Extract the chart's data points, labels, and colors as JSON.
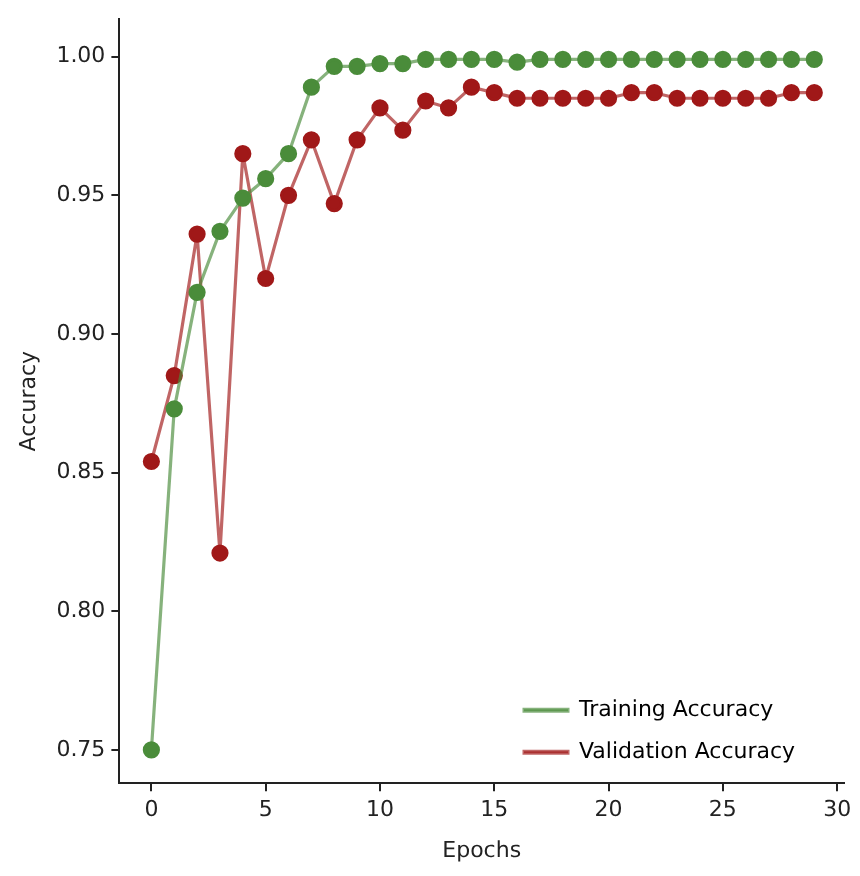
{
  "chart_data": {
    "type": "line",
    "xlabel": "Epochs",
    "ylabel": "Accuracy",
    "x": [
      0,
      1,
      2,
      3,
      4,
      5,
      6,
      7,
      8,
      9,
      10,
      11,
      12,
      13,
      14,
      15,
      16,
      17,
      18,
      19,
      20,
      21,
      22,
      23,
      24,
      25,
      26,
      27,
      28,
      29
    ],
    "series": [
      {
        "name": "Training Accuracy",
        "color": "#4a8c3a",
        "values": [
          0.75,
          0.873,
          0.915,
          0.937,
          0.949,
          0.956,
          0.965,
          0.989,
          0.9965,
          0.9965,
          0.9975,
          0.9975,
          0.999,
          0.999,
          0.999,
          0.999,
          0.998,
          0.999,
          0.999,
          0.999,
          0.999,
          0.999,
          0.999,
          0.999,
          0.999,
          0.999,
          0.999,
          0.999,
          0.999,
          0.999
        ]
      },
      {
        "name": "Validation Accuracy",
        "color": "#a01818",
        "values": [
          0.854,
          0.885,
          0.936,
          0.821,
          0.965,
          0.92,
          0.95,
          0.97,
          0.947,
          0.97,
          0.9815,
          0.9735,
          0.984,
          0.9815,
          0.989,
          0.987,
          0.985,
          0.985,
          0.985,
          0.985,
          0.985,
          0.987,
          0.987,
          0.985,
          0.985,
          0.985,
          0.985,
          0.985,
          0.987,
          0.987
        ]
      }
    ],
    "xlim": [
      -1.4,
      30.3
    ],
    "xticks": [
      0,
      5,
      10,
      15,
      20,
      25,
      30
    ],
    "ylim": [
      0.738,
      1.0135
    ],
    "yticks": [
      {
        "value": 0.75,
        "label": "0.75"
      },
      {
        "value": 0.8,
        "label": "0.80"
      },
      {
        "value": 0.85,
        "label": "0.85"
      },
      {
        "value": 0.9,
        "label": "0.90"
      },
      {
        "value": 0.95,
        "label": "0.95"
      },
      {
        "value": 1.0,
        "label": "1.00"
      }
    ],
    "grid": false,
    "legend": "bottom right",
    "marker": "circle",
    "line_style": "solid"
  }
}
